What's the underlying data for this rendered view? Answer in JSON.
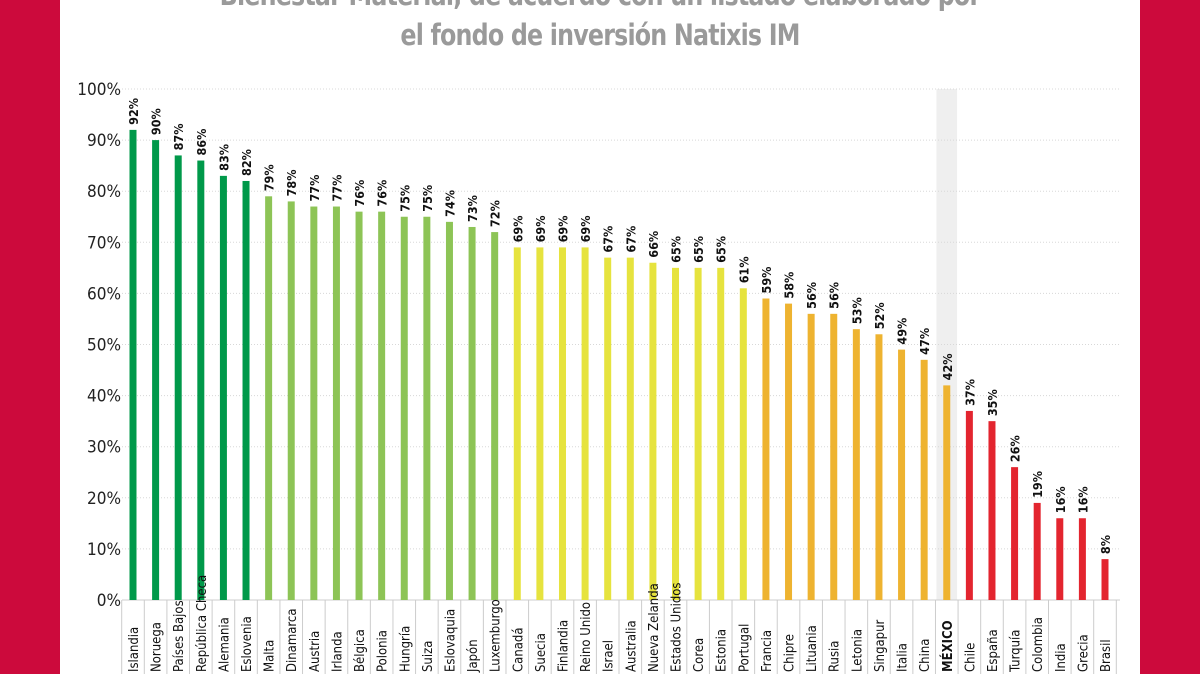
{
  "chart_data": {
    "type": "bar",
    "title": [
      "Bienestar Material, de acuerdo con un listado elaborado por",
      "el fondo de inversión Natixis IM"
    ],
    "categories": [
      "Islandia",
      "Noruega",
      "Países Bajos",
      "República Checa",
      "Alemania",
      "Eslovenia",
      "Malta",
      "Dinamarca",
      "Austria",
      "Irlanda",
      "Bélgica",
      "Polonia",
      "Hungría",
      "Suiza",
      "Eslovaquia",
      "Japón",
      "Luxemburgo",
      "Canadá",
      "Suecia",
      "Finlandia",
      "Reino Unido",
      "Israel",
      "Australia",
      "Nueva Zelanda",
      "Estados Unidos",
      "Corea",
      "Estonia",
      "Portugal",
      "Francia",
      "Chipre",
      "Lituania",
      "Rusia",
      "Letonia",
      "Singapur",
      "Italia",
      "China",
      "MÉXICO",
      "Chile",
      "España",
      "Turquía",
      "Colombia",
      "India",
      "Grecia",
      "Brasil"
    ],
    "values": [
      92,
      90,
      87,
      86,
      83,
      82,
      79,
      78,
      77,
      77,
      76,
      76,
      75,
      75,
      74,
      73,
      72,
      69,
      69,
      69,
      69,
      67,
      67,
      66,
      65,
      65,
      65,
      61,
      59,
      58,
      56,
      56,
      53,
      52,
      49,
      47,
      42,
      37,
      35,
      26,
      19,
      16,
      16,
      8
    ],
    "data_labels": [
      "92%",
      "90%",
      "87%",
      "86%",
      "83%",
      "82%",
      "79%",
      "78%",
      "77%",
      "77%",
      "76%",
      "76%",
      "75%",
      "75%",
      "74%",
      "73%",
      "72%",
      "69%",
      "69%",
      "69%",
      "69%",
      "67%",
      "67%",
      "66%",
      "65%",
      "65%",
      "65%",
      "61%",
      "59%",
      "58%",
      "56%",
      "56%",
      "53%",
      "52%",
      "49%",
      "47%",
      "42%",
      "37%",
      "35%",
      "26%",
      "19%",
      "16%",
      "16%",
      "8%"
    ],
    "y_ticks": [
      "0%",
      "10%",
      "20%",
      "30%",
      "40%",
      "50%",
      "60%",
      "70%",
      "80%",
      "90%",
      "100%"
    ],
    "ylim": [
      0,
      100
    ],
    "grid": true,
    "highlight": "MÉXICO",
    "color_groups": [
      {
        "color": "#00994a",
        "count": 6
      },
      {
        "color": "#8dc456",
        "count": 11
      },
      {
        "color": "#e6e33e",
        "count": 11
      },
      {
        "color": "#eeb330",
        "count": 9
      },
      {
        "color": "#e3252f",
        "count": 7
      }
    ]
  },
  "colors": {
    "background": "#cc0a3c",
    "highlight_band": "#efefef"
  }
}
